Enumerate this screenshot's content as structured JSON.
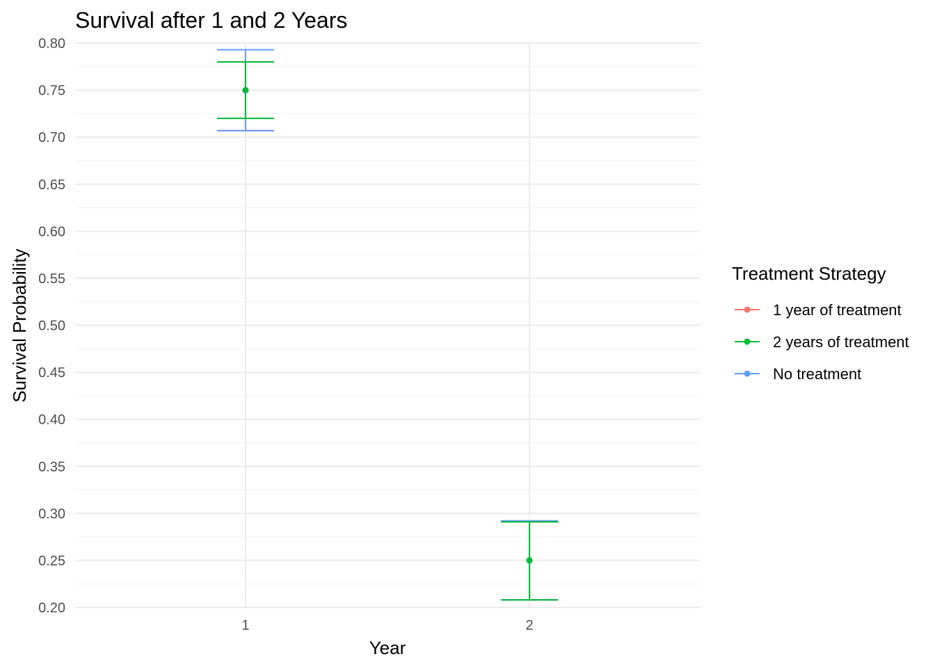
{
  "chart_data": {
    "type": "line",
    "title": "Survival after 1 and 2 Years",
    "xlabel": "Year",
    "ylabel": "Survival Probability",
    "x_ticks": [
      "1",
      "2"
    ],
    "y_ticks": [
      "0.20",
      "0.25",
      "0.30",
      "0.35",
      "0.40",
      "0.45",
      "0.50",
      "0.55",
      "0.60",
      "0.65",
      "0.70",
      "0.75",
      "0.80"
    ],
    "xlim": [
      0.4,
      2.6
    ],
    "ylim": [
      0.2,
      0.8
    ],
    "grid": true,
    "legend": {
      "title": "Treatment Strategy",
      "placement": "right"
    },
    "series": [
      {
        "name": "1 year of treatment",
        "color": "#F8766D",
        "points": [
          {
            "x": 1,
            "y": 0.75,
            "ymin": 0.707,
            "ymax": 0.793
          },
          {
            "x": 2,
            "y": 0.25,
            "ymin": 0.208,
            "ymax": 0.292
          }
        ]
      },
      {
        "name": "No treatment",
        "color": "#619CFF",
        "points": [
          {
            "x": 1,
            "y": 0.75,
            "ymin": 0.707,
            "ymax": 0.793
          },
          {
            "x": 2,
            "y": 0.25,
            "ymin": 0.208,
            "ymax": 0.292
          }
        ]
      },
      {
        "name": "2 years of treatment",
        "color": "#00BA38",
        "points": [
          {
            "x": 1,
            "y": 0.75,
            "ymin": 0.72,
            "ymax": 0.78
          },
          {
            "x": 2,
            "y": 0.25,
            "ymin": 0.208,
            "ymax": 0.291
          }
        ]
      }
    ],
    "legend_order": [
      "1 year of treatment",
      "2 years of treatment",
      "No treatment"
    ]
  }
}
